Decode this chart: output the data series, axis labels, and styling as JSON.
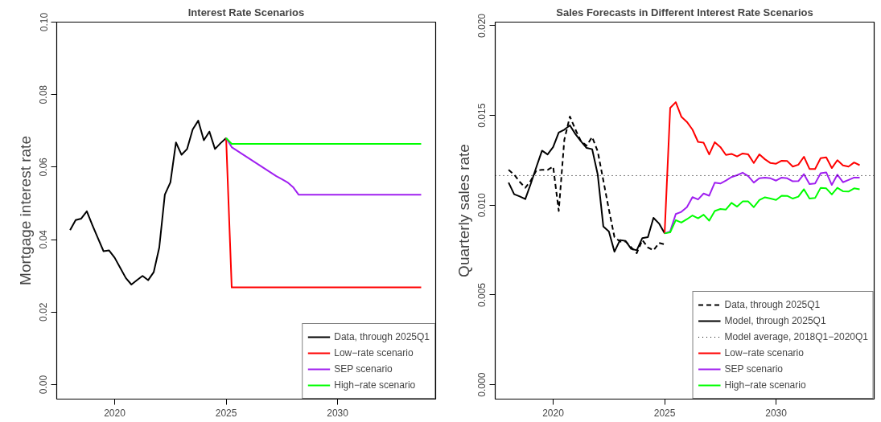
{
  "chart_data": [
    {
      "type": "line",
      "title": "Interest Rate Scenarios",
      "ylabel": "Mortgage interest rate",
      "xlim": [
        2017.4,
        2034.4
      ],
      "ylim": [
        -0.004,
        0.1
      ],
      "xticks": [
        2020,
        2025,
        2030
      ],
      "yticks": [
        {
          "value": 0,
          "label": "0.00"
        },
        {
          "value": 0.02,
          "label": "0.02"
        },
        {
          "value": 0.04,
          "label": "0.04"
        },
        {
          "value": 0.06,
          "label": "0.06"
        },
        {
          "value": 0.08,
          "label": "0.08"
        },
        {
          "value": 0.1,
          "label": "0.10"
        }
      ],
      "grid": false,
      "legend": "bottom right",
      "series": [
        {
          "name": "Data, through 2025Q1",
          "color": "#000000",
          "line_style": "solid",
          "x": [
            2018,
            2018.25,
            2018.5,
            2018.75,
            2019,
            2019.25,
            2019.5,
            2019.75,
            2020,
            2020.25,
            2020.5,
            2020.75,
            2021,
            2021.25,
            2021.5,
            2021.75,
            2022,
            2022.25,
            2022.5,
            2022.75,
            2023,
            2023.25,
            2023.5,
            2023.75,
            2024,
            2024.25,
            2024.5,
            2024.75,
            2025
          ],
          "values": [
            0.0426,
            0.0454,
            0.0458,
            0.0478,
            0.044,
            0.0404,
            0.0368,
            0.037,
            0.035,
            0.0322,
            0.0294,
            0.0276,
            0.0288,
            0.03,
            0.0288,
            0.031,
            0.0378,
            0.0524,
            0.0558,
            0.0668,
            0.0634,
            0.065,
            0.0704,
            0.0728,
            0.0674,
            0.0698,
            0.065,
            0.0666,
            0.068
          ]
        },
        {
          "name": "Low−rate scenario",
          "color": "#ff0000",
          "line_style": "solid",
          "x": [
            2025,
            2025.25,
            2033.75
          ],
          "values": [
            0.068,
            0.0268,
            0.0268
          ]
        },
        {
          "name": "SEP scenario",
          "color": "#a020f0",
          "line_style": "solid",
          "x": [
            2025,
            2025.25,
            2025.5,
            2025.75,
            2026,
            2026.25,
            2026.5,
            2026.75,
            2027,
            2027.25,
            2027.5,
            2027.75,
            2028,
            2028.25,
            2033.75
          ],
          "values": [
            0.068,
            0.0655,
            0.0645,
            0.0635,
            0.0625,
            0.0615,
            0.0605,
            0.0595,
            0.0585,
            0.0575,
            0.0567,
            0.0558,
            0.0545,
            0.0524,
            0.0524
          ]
        },
        {
          "name": "High−rate scenario",
          "color": "#00ff00",
          "line_style": "solid",
          "x": [
            2025,
            2025.25,
            2033.75
          ],
          "values": [
            0.068,
            0.0664,
            0.0664
          ]
        }
      ]
    },
    {
      "type": "line",
      "title": "Sales Forecasts in Different Interest Rate Scenarios",
      "ylabel": "Quarterly sales rate",
      "xlim": [
        2017.4,
        2034.4
      ],
      "ylim": [
        -0.0008,
        0.0202
      ],
      "xticks": [
        2020,
        2025,
        2030
      ],
      "yticks": [
        {
          "value": 0,
          "label": "0.000"
        },
        {
          "value": 0.005,
          "label": "0.005"
        },
        {
          "value": 0.01,
          "label": "0.010"
        },
        {
          "value": 0.015,
          "label": "0.015"
        },
        {
          "value": 0.02,
          "label": "0.020"
        }
      ],
      "grid": false,
      "legend": "bottom right",
      "ref_lines": [
        {
          "axis": "y",
          "value": 0.01165,
          "label": "Model average, 2018Q1−2020Q1",
          "line_style": "dotted",
          "color": "#000000"
        }
      ],
      "series": [
        {
          "name": "Data, through 2025Q1",
          "color": "#000000",
          "line_style": "dashed",
          "x": [
            2018,
            2018.25,
            2018.5,
            2018.75,
            2019,
            2019.25,
            2019.5,
            2019.75,
            2020,
            2020.25,
            2020.5,
            2020.75,
            2021,
            2021.25,
            2021.5,
            2021.75,
            2022,
            2022.25,
            2022.5,
            2022.75,
            2023,
            2023.25,
            2023.5,
            2023.75,
            2024,
            2024.25,
            2024.5,
            2024.75,
            2025
          ],
          "values": [
            0.01197,
            0.0117,
            0.0113,
            0.01097,
            0.01138,
            0.01194,
            0.01197,
            0.01197,
            0.01215,
            0.00968,
            0.01364,
            0.01494,
            0.01421,
            0.01356,
            0.01332,
            0.0138,
            0.01299,
            0.01138,
            0.00976,
            0.00822,
            0.00798,
            0.00798,
            0.00765,
            0.00733,
            0.00806,
            0.00765,
            0.00749,
            0.0079,
            0.00782
          ]
        },
        {
          "name": "Model, through 2025Q1",
          "color": "#000000",
          "line_style": "solid",
          "x": [
            2018,
            2018.25,
            2018.5,
            2018.75,
            2019,
            2019.25,
            2019.5,
            2019.75,
            2020,
            2020.25,
            2020.5,
            2020.75,
            2021,
            2021.25,
            2021.5,
            2021.75,
            2022,
            2022.25,
            2022.5,
            2022.75,
            2023,
            2023.25,
            2023.5,
            2023.75,
            2024,
            2024.25,
            2024.5,
            2024.75,
            2025
          ],
          "values": [
            0.01126,
            0.01061,
            0.01049,
            0.01034,
            0.01121,
            0.01214,
            0.01304,
            0.01283,
            0.01324,
            0.01405,
            0.01421,
            0.01445,
            0.01396,
            0.01356,
            0.01319,
            0.01312,
            0.0117,
            0.00882,
            0.00854,
            0.00741,
            0.00806,
            0.00801,
            0.00757,
            0.00749,
            0.00817,
            0.00822,
            0.0093,
            0.00898,
            0.00843
          ]
        },
        {
          "name": "Low−rate scenario",
          "color": "#ff0000",
          "line_style": "solid",
          "x": [
            2025,
            2025.25,
            2025.5,
            2025.75,
            2026,
            2026.25,
            2026.5,
            2026.75,
            2027,
            2027.25,
            2027.5,
            2027.75,
            2028,
            2028.25,
            2028.5,
            2028.75,
            2029,
            2029.25,
            2029.5,
            2029.75,
            2030,
            2030.25,
            2030.5,
            2030.75,
            2031,
            2031.25,
            2031.5,
            2031.75,
            2032,
            2032.25,
            2032.5,
            2032.75,
            2033,
            2033.25,
            2033.5,
            2033.75
          ],
          "values": [
            0.00843,
            0.01542,
            0.01574,
            0.01493,
            0.01464,
            0.01421,
            0.01353,
            0.01348,
            0.01283,
            0.01351,
            0.01324,
            0.0128,
            0.01286,
            0.01272,
            0.01288,
            0.01283,
            0.01235,
            0.01283,
            0.01256,
            0.01235,
            0.01231,
            0.01248,
            0.01246,
            0.01215,
            0.01226,
            0.0127,
            0.01202,
            0.01202,
            0.01262,
            0.01267,
            0.01207,
            0.01251,
            0.01222,
            0.01215,
            0.01238,
            0.01223
          ]
        },
        {
          "name": "SEP scenario",
          "color": "#a020f0",
          "line_style": "solid",
          "x": [
            2025,
            2025.25,
            2025.5,
            2025.75,
            2026,
            2026.25,
            2026.5,
            2026.75,
            2027,
            2027.25,
            2027.5,
            2027.75,
            2028,
            2028.25,
            2028.5,
            2028.75,
            2029,
            2029.25,
            2029.5,
            2029.75,
            2030,
            2030.25,
            2030.5,
            2030.75,
            2031,
            2031.25,
            2031.5,
            2031.75,
            2032,
            2032.25,
            2032.5,
            2032.75,
            2033,
            2033.25,
            2033.5,
            2033.75
          ],
          "values": [
            0.00843,
            0.00854,
            0.00951,
            0.00963,
            0.00989,
            0.01045,
            0.01032,
            0.01065,
            0.01053,
            0.01126,
            0.01121,
            0.01137,
            0.01157,
            0.01167,
            0.01181,
            0.01162,
            0.01126,
            0.0115,
            0.01154,
            0.0115,
            0.01137,
            0.01154,
            0.0115,
            0.01133,
            0.01134,
            0.01173,
            0.01118,
            0.01121,
            0.01178,
            0.01183,
            0.01113,
            0.0117,
            0.01128,
            0.01141,
            0.01154,
            0.01154
          ]
        },
        {
          "name": "High−rate scenario",
          "color": "#00ff00",
          "line_style": "solid",
          "x": [
            2025,
            2025.25,
            2025.5,
            2025.75,
            2026,
            2026.25,
            2026.5,
            2026.75,
            2027,
            2027.25,
            2027.5,
            2027.75,
            2028,
            2028.25,
            2028.5,
            2028.75,
            2029,
            2029.25,
            2029.5,
            2029.75,
            2030,
            2030.25,
            2030.5,
            2030.75,
            2031,
            2031.25,
            2031.5,
            2031.75,
            2032,
            2032.25,
            2032.5,
            2032.75,
            2033,
            2033.25,
            2033.5,
            2033.75
          ],
          "values": [
            0.00843,
            0.00849,
            0.00917,
            0.00903,
            0.00922,
            0.00943,
            0.00927,
            0.00947,
            0.00914,
            0.00968,
            0.00979,
            0.00976,
            0.01013,
            0.00992,
            0.01021,
            0.01021,
            0.00989,
            0.01029,
            0.01044,
            0.01037,
            0.01029,
            0.01053,
            0.01052,
            0.01037,
            0.01048,
            0.01089,
            0.01037,
            0.0104,
            0.01097,
            0.01094,
            0.0106,
            0.01097,
            0.01078,
            0.01076,
            0.01094,
            0.01089
          ]
        }
      ]
    }
  ]
}
